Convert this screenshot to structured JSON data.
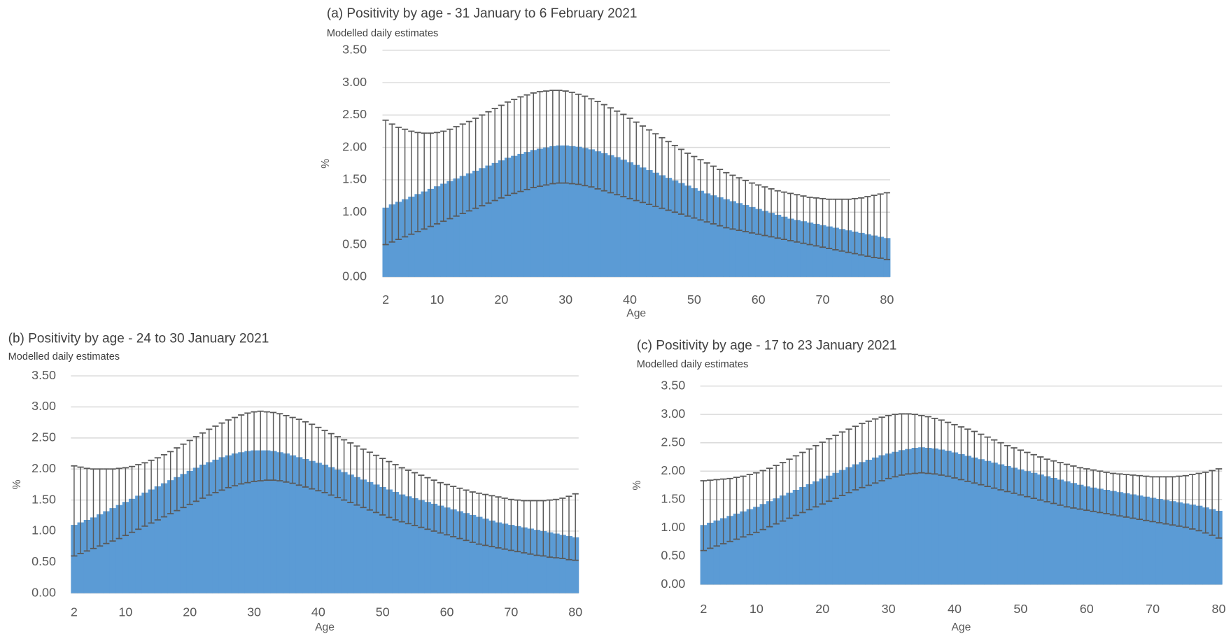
{
  "chart_data": [
    {
      "type": "bar",
      "title": "(a) Positivity by age - 31 January to 6 February 2021",
      "subtitle": "Modelled  daily estimates",
      "x_label": "Age",
      "y_label": "%",
      "x": [
        2,
        3,
        4,
        5,
        6,
        7,
        8,
        9,
        10,
        11,
        12,
        13,
        14,
        15,
        16,
        17,
        18,
        19,
        20,
        21,
        22,
        23,
        24,
        25,
        26,
        27,
        28,
        29,
        30,
        31,
        32,
        33,
        34,
        35,
        36,
        37,
        38,
        39,
        40,
        41,
        42,
        43,
        44,
        45,
        46,
        47,
        48,
        49,
        50,
        51,
        52,
        53,
        54,
        55,
        56,
        57,
        58,
        59,
        60,
        61,
        62,
        63,
        64,
        65,
        66,
        67,
        68,
        69,
        70,
        71,
        72,
        73,
        74,
        75,
        76,
        77,
        78,
        79,
        80
      ],
      "values": [
        1.07,
        1.12,
        1.16,
        1.2,
        1.24,
        1.28,
        1.32,
        1.36,
        1.4,
        1.44,
        1.48,
        1.52,
        1.56,
        1.6,
        1.64,
        1.68,
        1.72,
        1.76,
        1.8,
        1.84,
        1.87,
        1.9,
        1.93,
        1.96,
        1.98,
        2.0,
        2.02,
        2.03,
        2.03,
        2.02,
        2.01,
        1.99,
        1.97,
        1.94,
        1.91,
        1.88,
        1.85,
        1.81,
        1.77,
        1.73,
        1.69,
        1.65,
        1.61,
        1.57,
        1.53,
        1.49,
        1.45,
        1.41,
        1.37,
        1.33,
        1.29,
        1.26,
        1.23,
        1.2,
        1.17,
        1.14,
        1.11,
        1.08,
        1.05,
        1.02,
        0.99,
        0.96,
        0.93,
        0.9,
        0.88,
        0.86,
        0.84,
        0.82,
        0.8,
        0.78,
        0.76,
        0.74,
        0.72,
        0.7,
        0.68,
        0.66,
        0.64,
        0.62,
        0.6
      ],
      "lower": [
        0.5,
        0.54,
        0.58,
        0.62,
        0.66,
        0.7,
        0.74,
        0.78,
        0.82,
        0.86,
        0.9,
        0.94,
        0.98,
        1.02,
        1.06,
        1.1,
        1.14,
        1.18,
        1.22,
        1.26,
        1.29,
        1.32,
        1.35,
        1.38,
        1.4,
        1.42,
        1.44,
        1.45,
        1.45,
        1.44,
        1.43,
        1.41,
        1.39,
        1.36,
        1.33,
        1.3,
        1.27,
        1.24,
        1.21,
        1.18,
        1.15,
        1.12,
        1.09,
        1.06,
        1.03,
        1.0,
        0.97,
        0.94,
        0.91,
        0.88,
        0.85,
        0.82,
        0.79,
        0.76,
        0.74,
        0.72,
        0.7,
        0.68,
        0.66,
        0.64,
        0.62,
        0.6,
        0.58,
        0.56,
        0.54,
        0.52,
        0.5,
        0.48,
        0.46,
        0.44,
        0.42,
        0.4,
        0.38,
        0.36,
        0.34,
        0.32,
        0.3,
        0.29,
        0.27
      ],
      "upper": [
        2.42,
        2.36,
        2.31,
        2.28,
        2.25,
        2.23,
        2.22,
        2.22,
        2.23,
        2.25,
        2.28,
        2.32,
        2.36,
        2.4,
        2.45,
        2.5,
        2.55,
        2.6,
        2.65,
        2.7,
        2.74,
        2.78,
        2.81,
        2.84,
        2.86,
        2.87,
        2.88,
        2.88,
        2.87,
        2.85,
        2.82,
        2.79,
        2.75,
        2.71,
        2.66,
        2.61,
        2.56,
        2.51,
        2.45,
        2.39,
        2.33,
        2.27,
        2.21,
        2.15,
        2.09,
        2.03,
        1.97,
        1.91,
        1.86,
        1.81,
        1.76,
        1.71,
        1.66,
        1.61,
        1.57,
        1.53,
        1.49,
        1.45,
        1.42,
        1.39,
        1.36,
        1.33,
        1.31,
        1.29,
        1.27,
        1.25,
        1.23,
        1.22,
        1.21,
        1.2,
        1.2,
        1.2,
        1.2,
        1.21,
        1.22,
        1.24,
        1.26,
        1.28,
        1.3
      ],
      "color": "#5b9bd5",
      "error_color": "#595959",
      "xlim": [
        1.5,
        80.5
      ],
      "ylim": [
        0,
        3.5
      ],
      "xticks": [
        2,
        10,
        20,
        30,
        40,
        50,
        60,
        70,
        80
      ],
      "yticks": [
        {
          "value": 0,
          "label": "0.00"
        },
        {
          "value": 0.5,
          "label": "0.50"
        },
        {
          "value": 1,
          "label": "1.00"
        },
        {
          "value": 1.5,
          "label": "1.50"
        },
        {
          "value": 2,
          "label": "2.00"
        },
        {
          "value": 2.5,
          "label": "2.50"
        },
        {
          "value": 3,
          "label": "3.00"
        },
        {
          "value": 3.5,
          "label": "3.50"
        }
      ],
      "grid": true
    },
    {
      "type": "bar",
      "title": "(b) Positivity by age - 24 to 30 January 2021",
      "subtitle": "Modelled  daily estimates",
      "x_label": "Age",
      "y_label": "%",
      "x": [
        2,
        3,
        4,
        5,
        6,
        7,
        8,
        9,
        10,
        11,
        12,
        13,
        14,
        15,
        16,
        17,
        18,
        19,
        20,
        21,
        22,
        23,
        24,
        25,
        26,
        27,
        28,
        29,
        30,
        31,
        32,
        33,
        34,
        35,
        36,
        37,
        38,
        39,
        40,
        41,
        42,
        43,
        44,
        45,
        46,
        47,
        48,
        49,
        50,
        51,
        52,
        53,
        54,
        55,
        56,
        57,
        58,
        59,
        60,
        61,
        62,
        63,
        64,
        65,
        66,
        67,
        68,
        69,
        70,
        71,
        72,
        73,
        74,
        75,
        76,
        77,
        78,
        79,
        80
      ],
      "values": [
        1.1,
        1.14,
        1.18,
        1.22,
        1.27,
        1.32,
        1.37,
        1.42,
        1.47,
        1.52,
        1.57,
        1.62,
        1.67,
        1.72,
        1.77,
        1.82,
        1.87,
        1.92,
        1.97,
        2.02,
        2.07,
        2.11,
        2.15,
        2.19,
        2.22,
        2.25,
        2.27,
        2.29,
        2.3,
        2.3,
        2.3,
        2.29,
        2.27,
        2.25,
        2.22,
        2.19,
        2.16,
        2.13,
        2.1,
        2.07,
        2.03,
        1.99,
        1.95,
        1.91,
        1.87,
        1.83,
        1.79,
        1.75,
        1.71,
        1.67,
        1.63,
        1.59,
        1.56,
        1.53,
        1.5,
        1.47,
        1.44,
        1.41,
        1.38,
        1.35,
        1.32,
        1.29,
        1.26,
        1.23,
        1.2,
        1.17,
        1.14,
        1.12,
        1.1,
        1.08,
        1.06,
        1.04,
        1.02,
        1.0,
        0.98,
        0.96,
        0.94,
        0.92,
        0.9
      ],
      "lower": [
        0.6,
        0.64,
        0.68,
        0.72,
        0.76,
        0.8,
        0.84,
        0.88,
        0.93,
        0.98,
        1.03,
        1.08,
        1.13,
        1.18,
        1.23,
        1.28,
        1.33,
        1.38,
        1.43,
        1.48,
        1.53,
        1.58,
        1.62,
        1.66,
        1.7,
        1.73,
        1.76,
        1.78,
        1.8,
        1.81,
        1.82,
        1.82,
        1.81,
        1.79,
        1.77,
        1.74,
        1.71,
        1.68,
        1.65,
        1.62,
        1.58,
        1.54,
        1.5,
        1.46,
        1.42,
        1.38,
        1.34,
        1.3,
        1.26,
        1.22,
        1.18,
        1.15,
        1.12,
        1.09,
        1.06,
        1.03,
        1.0,
        0.97,
        0.94,
        0.91,
        0.88,
        0.85,
        0.82,
        0.79,
        0.77,
        0.75,
        0.73,
        0.71,
        0.69,
        0.67,
        0.65,
        0.63,
        0.61,
        0.6,
        0.58,
        0.57,
        0.56,
        0.54,
        0.53
      ],
      "upper": [
        2.05,
        2.03,
        2.01,
        2.0,
        2.0,
        2.0,
        2.0,
        2.01,
        2.02,
        2.04,
        2.07,
        2.1,
        2.14,
        2.18,
        2.23,
        2.28,
        2.34,
        2.4,
        2.46,
        2.52,
        2.58,
        2.64,
        2.69,
        2.74,
        2.79,
        2.83,
        2.87,
        2.9,
        2.92,
        2.93,
        2.92,
        2.91,
        2.89,
        2.86,
        2.83,
        2.8,
        2.76,
        2.72,
        2.67,
        2.62,
        2.57,
        2.52,
        2.47,
        2.42,
        2.37,
        2.32,
        2.27,
        2.22,
        2.17,
        2.12,
        2.07,
        2.02,
        1.98,
        1.94,
        1.9,
        1.86,
        1.82,
        1.78,
        1.75,
        1.72,
        1.69,
        1.66,
        1.63,
        1.61,
        1.59,
        1.57,
        1.55,
        1.53,
        1.51,
        1.5,
        1.49,
        1.49,
        1.49,
        1.49,
        1.5,
        1.51,
        1.53,
        1.56,
        1.6
      ],
      "color": "#5b9bd5",
      "error_color": "#595959",
      "xlim": [
        1.5,
        80.5
      ],
      "ylim": [
        0,
        3.5
      ],
      "xticks": [
        2,
        10,
        20,
        30,
        40,
        50,
        60,
        70,
        80
      ],
      "yticks": [
        {
          "value": 0,
          "label": "0.00"
        },
        {
          "value": 0.5,
          "label": "0.50"
        },
        {
          "value": 1,
          "label": "1.00"
        },
        {
          "value": 1.5,
          "label": "1.50"
        },
        {
          "value": 2,
          "label": "2.00"
        },
        {
          "value": 2.5,
          "label": "2.50"
        },
        {
          "value": 3,
          "label": "3.00"
        },
        {
          "value": 3.5,
          "label": "3.50"
        }
      ],
      "grid": true
    },
    {
      "type": "bar",
      "title": "(c) Positivity by age - 17 to 23 January 2021",
      "subtitle": "Modelled  daily estimates",
      "x_label": "Age",
      "y_label": "%",
      "x": [
        2,
        3,
        4,
        5,
        6,
        7,
        8,
        9,
        10,
        11,
        12,
        13,
        14,
        15,
        16,
        17,
        18,
        19,
        20,
        21,
        22,
        23,
        24,
        25,
        26,
        27,
        28,
        29,
        30,
        31,
        32,
        33,
        34,
        35,
        36,
        37,
        38,
        39,
        40,
        41,
        42,
        43,
        44,
        45,
        46,
        47,
        48,
        49,
        50,
        51,
        52,
        53,
        54,
        55,
        56,
        57,
        58,
        59,
        60,
        61,
        62,
        63,
        64,
        65,
        66,
        67,
        68,
        69,
        70,
        71,
        72,
        73,
        74,
        75,
        76,
        77,
        78,
        79,
        80
      ],
      "values": [
        1.05,
        1.09,
        1.13,
        1.17,
        1.21,
        1.25,
        1.29,
        1.33,
        1.37,
        1.42,
        1.47,
        1.52,
        1.57,
        1.62,
        1.67,
        1.72,
        1.77,
        1.82,
        1.87,
        1.92,
        1.97,
        2.02,
        2.07,
        2.12,
        2.16,
        2.2,
        2.24,
        2.28,
        2.31,
        2.34,
        2.37,
        2.39,
        2.41,
        2.42,
        2.41,
        2.4,
        2.38,
        2.36,
        2.33,
        2.3,
        2.27,
        2.24,
        2.21,
        2.18,
        2.15,
        2.12,
        2.09,
        2.06,
        2.03,
        2.0,
        1.97,
        1.94,
        1.91,
        1.88,
        1.85,
        1.82,
        1.79,
        1.76,
        1.73,
        1.71,
        1.69,
        1.67,
        1.65,
        1.63,
        1.61,
        1.59,
        1.57,
        1.55,
        1.53,
        1.51,
        1.49,
        1.47,
        1.45,
        1.43,
        1.41,
        1.39,
        1.36,
        1.33,
        1.3
      ],
      "lower": [
        0.6,
        0.64,
        0.68,
        0.72,
        0.76,
        0.8,
        0.84,
        0.88,
        0.92,
        0.97,
        1.02,
        1.07,
        1.12,
        1.17,
        1.22,
        1.27,
        1.32,
        1.37,
        1.42,
        1.47,
        1.52,
        1.57,
        1.62,
        1.67,
        1.71,
        1.75,
        1.79,
        1.83,
        1.87,
        1.9,
        1.93,
        1.95,
        1.96,
        1.97,
        1.96,
        1.95,
        1.93,
        1.91,
        1.88,
        1.85,
        1.82,
        1.79,
        1.76,
        1.73,
        1.7,
        1.67,
        1.64,
        1.61,
        1.58,
        1.55,
        1.52,
        1.49,
        1.46,
        1.43,
        1.4,
        1.37,
        1.35,
        1.33,
        1.31,
        1.29,
        1.27,
        1.25,
        1.23,
        1.21,
        1.19,
        1.17,
        1.15,
        1.13,
        1.11,
        1.09,
        1.07,
        1.05,
        1.03,
        1.01,
        0.98,
        0.95,
        0.91,
        0.87,
        0.82
      ],
      "upper": [
        1.83,
        1.84,
        1.85,
        1.86,
        1.87,
        1.89,
        1.91,
        1.94,
        1.97,
        2.01,
        2.05,
        2.1,
        2.15,
        2.21,
        2.27,
        2.33,
        2.39,
        2.45,
        2.51,
        2.57,
        2.63,
        2.69,
        2.74,
        2.79,
        2.84,
        2.88,
        2.92,
        2.95,
        2.98,
        3.0,
        3.01,
        3.01,
        3.0,
        2.98,
        2.96,
        2.93,
        2.9,
        2.86,
        2.82,
        2.78,
        2.74,
        2.7,
        2.65,
        2.6,
        2.55,
        2.5,
        2.45,
        2.41,
        2.37,
        2.33,
        2.29,
        2.25,
        2.21,
        2.18,
        2.15,
        2.12,
        2.09,
        2.06,
        2.04,
        2.02,
        2.0,
        1.98,
        1.96,
        1.95,
        1.94,
        1.93,
        1.92,
        1.91,
        1.9,
        1.9,
        1.9,
        1.9,
        1.91,
        1.92,
        1.94,
        1.96,
        1.98,
        2.01,
        2.04
      ],
      "color": "#5b9bd5",
      "error_color": "#595959",
      "xlim": [
        1.5,
        80.5
      ],
      "ylim": [
        0,
        3.5
      ],
      "xticks": [
        2,
        10,
        20,
        30,
        40,
        50,
        60,
        70,
        80
      ],
      "yticks": [
        {
          "value": 0,
          "label": "0.00"
        },
        {
          "value": 0.5,
          "label": "0.50"
        },
        {
          "value": 1,
          "label": "1.00"
        },
        {
          "value": 1.5,
          "label": "1.50"
        },
        {
          "value": 2,
          "label": "2.00"
        },
        {
          "value": 2.5,
          "label": "2.50"
        },
        {
          "value": 3,
          "label": "3.00"
        },
        {
          "value": 3.5,
          "label": "3.50"
        }
      ],
      "grid": true
    }
  ]
}
